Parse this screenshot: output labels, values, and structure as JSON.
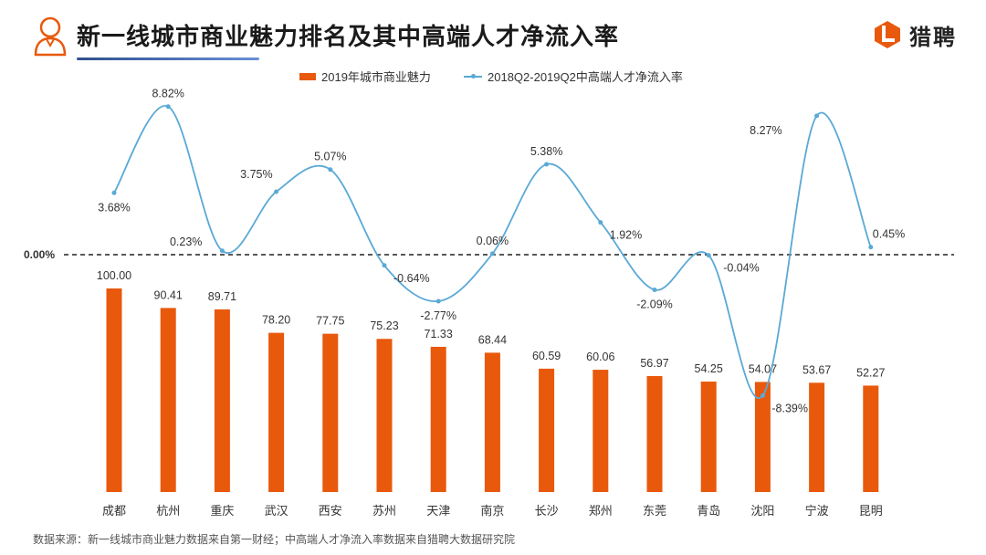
{
  "header": {
    "title": "新一线城市商业魅力排名及其中高端人才净流入率",
    "logo_text": "猎聘",
    "accent_color": "#e8590c"
  },
  "legend": {
    "bar_label": "2019年城市商业魅力",
    "line_label": "2018Q2-2019Q2中高端人才净流入率"
  },
  "chart_data": {
    "type": "bar+line",
    "categories": [
      "成都",
      "杭州",
      "重庆",
      "武汉",
      "西安",
      "苏州",
      "天津",
      "南京",
      "长沙",
      "郑州",
      "东莞",
      "青岛",
      "沈阳",
      "宁波",
      "昆明"
    ],
    "series": [
      {
        "name": "2019年城市商业魅力",
        "type": "bar",
        "color": "#e8590c",
        "values": [
          100.0,
          90.41,
          89.71,
          78.2,
          77.75,
          75.23,
          71.33,
          68.44,
          60.59,
          60.06,
          56.97,
          54.25,
          54.07,
          53.67,
          52.27
        ],
        "labels": [
          "100.00",
          "90.41",
          "89.71",
          "78.20",
          "77.75",
          "75.23",
          "71.33",
          "68.44",
          "60.59",
          "60.06",
          "56.97",
          "54.25",
          "54.07",
          "53.67",
          "52.27"
        ]
      },
      {
        "name": "2018Q2-2019Q2中高端人才净流入率",
        "type": "line",
        "color": "#5aa9d6",
        "values": [
          3.68,
          8.82,
          0.23,
          3.75,
          5.07,
          -0.64,
          -2.77,
          0.06,
          5.38,
          1.92,
          -2.09,
          -0.04,
          -8.39,
          8.27,
          0.45
        ],
        "labels": [
          "3.68%",
          "8.82%",
          "0.23%",
          "3.75%",
          "5.07%",
          "-0.64%",
          "-2.77%",
          "0.06%",
          "5.38%",
          "1.92%",
          "-2.09%",
          "-0.04%",
          "-8.39%",
          "8.27%",
          "0.45%"
        ]
      }
    ],
    "zero_line_label": "0.00%",
    "line_label_positions": [
      "below",
      "above",
      "left",
      "left",
      "above",
      "right",
      "below",
      "above",
      "above",
      "right",
      "below",
      "right",
      "right",
      "left",
      "right"
    ]
  },
  "footer": {
    "source": "数据来源：新一线城市商业魅力数据来自第一财经；中高端人才净流入率数据来自猎聘大数据研究院"
  }
}
